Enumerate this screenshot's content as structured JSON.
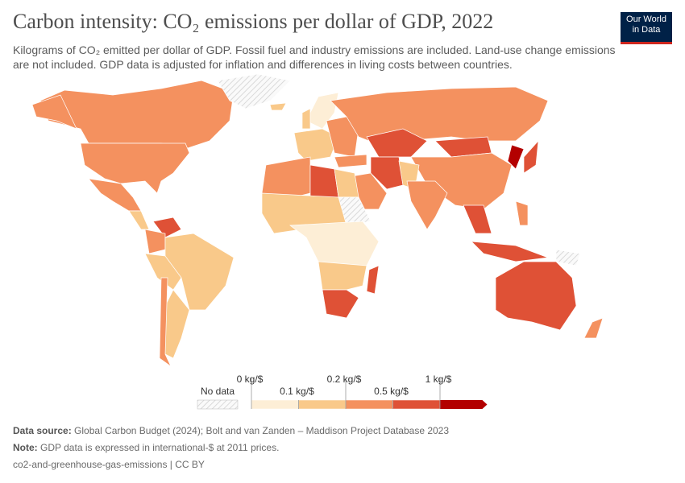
{
  "header": {
    "title": "Carbon intensity: CO₂ emissions per dollar of GDP, 2022",
    "subtitle": "Kilograms of CO₂ emitted per dollar of GDP. Fossil fuel and industry emissions are included. Land-use change emissions are not included. GDP data is adjusted for inflation and differences in living costs between countries.",
    "logo": [
      "Our World",
      "in Data"
    ]
  },
  "legend": {
    "no_data": "No data",
    "thresholds": [
      "0 kg/$",
      "0.1 kg/$",
      "0.2 kg/$",
      "0.5 kg/$",
      "1 kg/$"
    ],
    "colors": [
      "#fdeed6",
      "#f9c98a",
      "#f4915f",
      "#df5136",
      "#b30000"
    ]
  },
  "footer": {
    "source_label": "Data source:",
    "source": "Global Carbon Budget (2024); Bolt and van Zanden – Maddison Project Database 2023",
    "note_label": "Note:",
    "note": "GDP data is expressed in international-$ at 2011 prices.",
    "license": "co2-and-greenhouse-gas-emissions | CC BY"
  }
}
